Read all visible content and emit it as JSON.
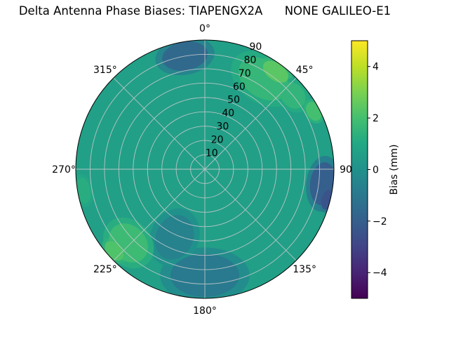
{
  "title": "Delta Antenna Phase Biases: TIAPENGX2A      NONE GALILEO-E1",
  "chart_data": {
    "type": "heatmap",
    "projection": "polar",
    "title": "Delta Antenna Phase Biases: TIAPENGX2A      NONE GALILEO-E1",
    "rmax": 90,
    "radial_ticks": [
      10,
      20,
      30,
      40,
      50,
      60,
      70,
      80,
      90
    ],
    "radial_axis_angle_deg": 22.5,
    "angular_ticks": [
      {
        "deg": 0,
        "label": "0°"
      },
      {
        "deg": 45,
        "label": "45°"
      },
      {
        "deg": 90,
        "label": "90"
      },
      {
        "deg": 135,
        "label": "135°"
      },
      {
        "deg": 180,
        "label": "180°"
      },
      {
        "deg": 225,
        "label": "225°"
      },
      {
        "deg": 270,
        "label": "270°"
      },
      {
        "deg": 315,
        "label": "315°"
      }
    ],
    "colorbar": {
      "label": "Bias (mm)",
      "min": -5,
      "max": 5,
      "ticks": [
        -4,
        -2,
        0,
        2,
        4
      ],
      "tick_labels": [
        "−4",
        "−2",
        "0",
        "2",
        "4"
      ],
      "colormap": "viridis",
      "colormap_stops": [
        "#440154",
        "#482475",
        "#414487",
        "#355f8d",
        "#2a788e",
        "#21918c",
        "#22a884",
        "#44bf70",
        "#7ad151",
        "#bddf26",
        "#fde725"
      ]
    },
    "grid_color": "#c6cacc",
    "edge_color": "#000000",
    "base_value": 0.6,
    "regions": [
      {
        "azimuth_deg": 350,
        "r": 80,
        "tangential": 16,
        "radial": 10,
        "value": -1.6,
        "note": "dark blue patch near top"
      },
      {
        "azimuth_deg": 33,
        "r": 75,
        "tangential": 19,
        "radial": 13,
        "value": 1.6,
        "note": "light green patch upper right"
      },
      {
        "azimuth_deg": 36,
        "r": 84,
        "tangential": 10,
        "radial": 6,
        "value": 2.4,
        "note": "bright green core upper right"
      },
      {
        "azimuth_deg": 50,
        "r": 80,
        "tangential": 10,
        "radial": 8,
        "value": 1.5,
        "note": "green extension toward 45°"
      },
      {
        "azimuth_deg": 62,
        "r": 86,
        "tangential": 7,
        "radial": 5,
        "value": 2.0,
        "note": "green spot near 60°"
      },
      {
        "azimuth_deg": 97,
        "r": 83,
        "tangential": 15,
        "radial": 9,
        "value": -2.0,
        "note": "dark blue arc at right edge"
      },
      {
        "azimuth_deg": 104,
        "r": 88,
        "tangential": 7,
        "radial": 4,
        "value": -2.4,
        "note": "darkest spot right edge"
      },
      {
        "azimuth_deg": 180,
        "r": 74,
        "tangential": 24,
        "radial": 15,
        "value": -0.9,
        "note": "darker teal at bottom"
      },
      {
        "azimuth_deg": 204,
        "r": 52,
        "tangential": 13,
        "radial": 16,
        "value": -0.6,
        "note": "slightly darker teal lower-left interior"
      },
      {
        "azimuth_deg": 226,
        "r": 74,
        "tangential": 15,
        "radial": 12,
        "value": 1.8,
        "note": "light green arc lower left"
      },
      {
        "azimuth_deg": 228,
        "r": 85,
        "tangential": 8,
        "radial": 5,
        "value": 2.2,
        "note": "bright green lower-left edge"
      },
      {
        "azimuth_deg": 260,
        "r": 86,
        "tangential": 9,
        "radial": 5,
        "value": 1.2,
        "note": "light spot left edge"
      }
    ]
  }
}
